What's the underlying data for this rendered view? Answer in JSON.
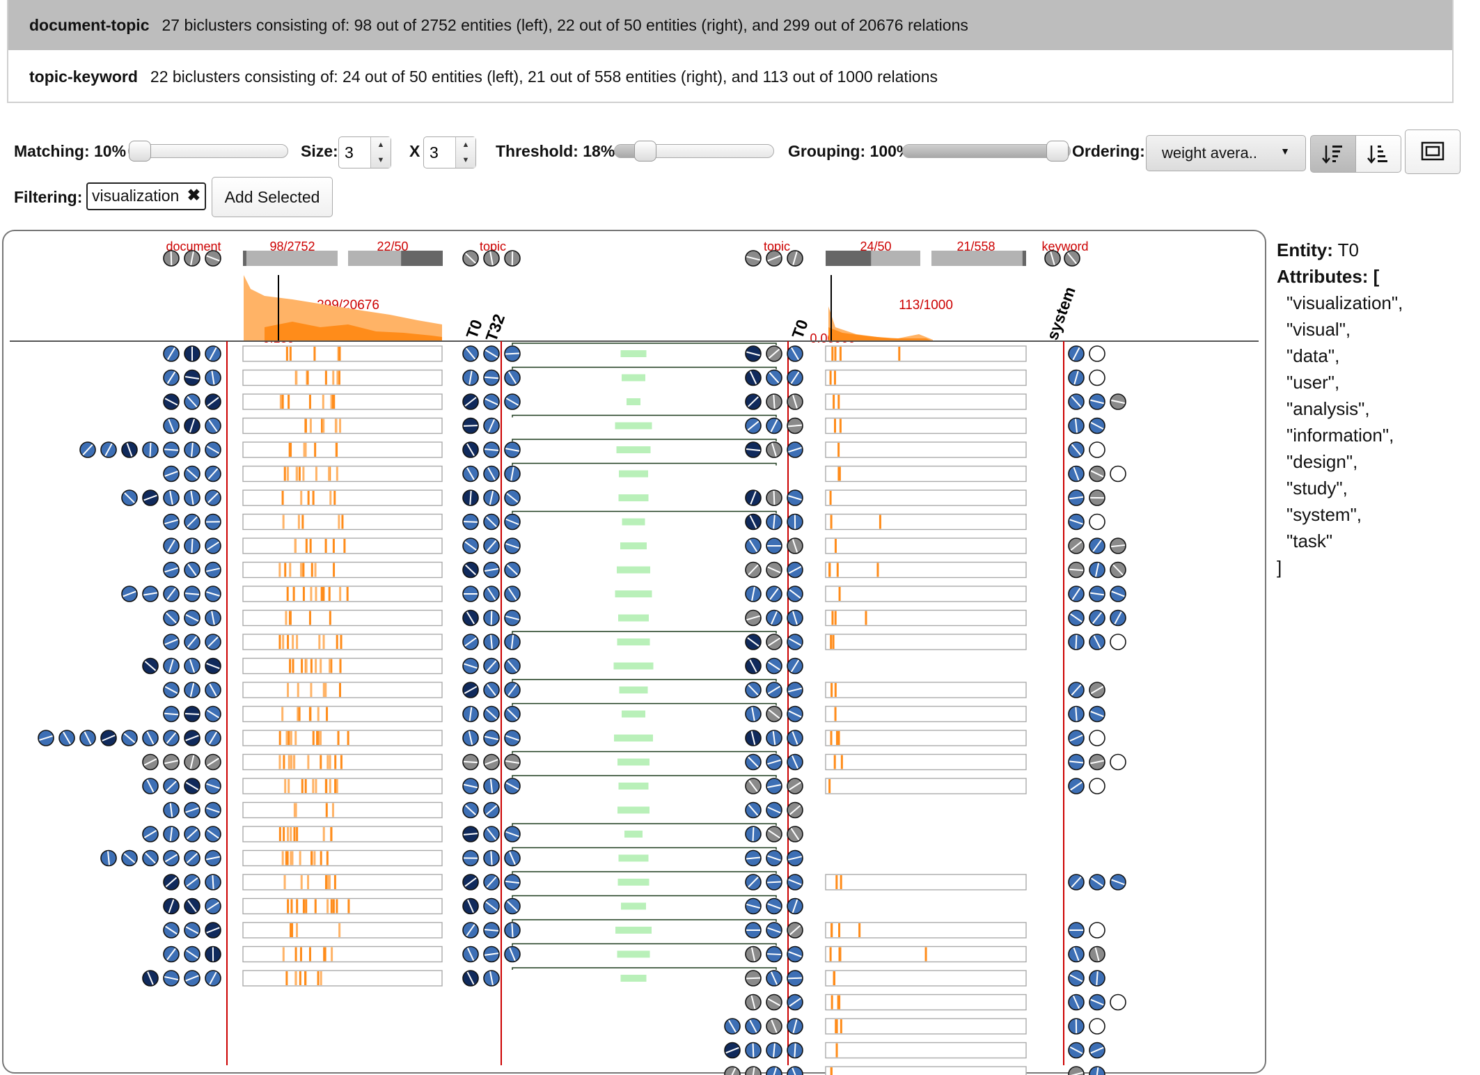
{
  "relations": [
    {
      "name": "document-topic",
      "summary": "27 biclusters consisting of: 98 out of 2752 entities (left), 22 out of 50 entities (right), and 299 out of 20676 relations",
      "selected": true
    },
    {
      "name": "topic-keyword",
      "summary": "22 biclusters consisting of: 24 out of 50 entities (left), 21 out of 558 entities (right), and 113 out of 1000 relations",
      "selected": false
    }
  ],
  "controls": {
    "matching": {
      "label": "Matching:",
      "value": "10%",
      "level": 0.1
    },
    "size": {
      "label": "Size:",
      "rows": "3",
      "separator": "X",
      "cols": "3"
    },
    "threshold": {
      "label": "Threshold:",
      "value": "18%",
      "level": 0.18
    },
    "grouping": {
      "label": "Grouping:",
      "value": "100%",
      "level": 1.0
    },
    "ordering": {
      "label": "Ordering:",
      "selected": "weight avera.."
    },
    "filtering": {
      "label": "Filtering:",
      "tag": "visualization",
      "add_label": "Add Selected"
    },
    "icons": {
      "sort_desc": "sort-descending-icon",
      "sort_asc": "sort-ascending-icon",
      "fit": "fit-screen-icon",
      "remove": "remove-x-icon"
    }
  },
  "header": {
    "left_entity_label": "document",
    "left_count_label": "98/2752",
    "right_count_label": "22/50",
    "mid_left_label": "topic",
    "mid_right_label": "topic",
    "right2_left_count": "24/50",
    "right2_right_count": "21/558",
    "keyword_label": "keyword",
    "hist1_label": "299/20676",
    "hist1_threshold": "0.180",
    "hist2_label": "113/1000",
    "hist2_threshold": "0.00900",
    "col_labels": [
      "T0",
      "T32",
      "T0",
      "system"
    ],
    "bar_fractions": {
      "left": 0.036,
      "right": 0.44,
      "right2_left": 0.48,
      "right2_right": 0.038
    }
  },
  "entity_panel": {
    "entity_label": "Entity:",
    "entity_value": "T0",
    "attributes_label": "Attributes: [",
    "attributes": [
      "\"visualization\",",
      "\"visual\",",
      "\"data\",",
      "\"user\",",
      "\"analysis\",",
      "\"information\",",
      "\"design\",",
      "\"study\",",
      "\"system\",",
      "\"task\""
    ],
    "close": "]"
  },
  "colors": {
    "bg_selected": "#bdbdbd",
    "accent_red": "#cc0000",
    "orange": "#ff8c1a",
    "orange_light": "#ffb366",
    "circle_blue": "#3d6fb5",
    "circle_dark": "#102a5c",
    "circle_gray": "#8a8a8a",
    "link_green": "#b9f0b9"
  }
}
